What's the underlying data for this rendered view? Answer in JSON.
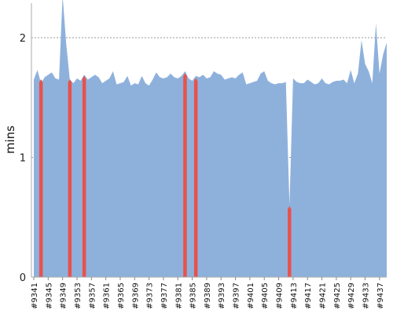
{
  "chart_data": {
    "type": "area",
    "ylabel": "mins",
    "ylim": [
      0,
      2.3
    ],
    "yticks": [
      0,
      1,
      2
    ],
    "grid": "horizontal dotted at y ticks",
    "x_start": 9341,
    "x_end": 9439,
    "x_tick_labels": [
      "#9341",
      "#9345",
      "#9349",
      "#9353",
      "#9357",
      "#9361",
      "#9365",
      "#9369",
      "#9373",
      "#9377",
      "#9381",
      "#9385",
      "#9389",
      "#9393",
      "#9397",
      "#9401",
      "#9405",
      "#9409",
      "#9413",
      "#9417",
      "#9421",
      "#9425",
      "#9429",
      "#9433",
      "#9437"
    ],
    "series": [
      {
        "style": "area",
        "color": "#8eb1dc",
        "x": [
          9341,
          9342,
          9343,
          9344,
          9345,
          9346,
          9347,
          9348,
          9349,
          9350,
          9351,
          9352,
          9353,
          9354,
          9355,
          9356,
          9357,
          9358,
          9359,
          9360,
          9361,
          9362,
          9363,
          9364,
          9365,
          9366,
          9367,
          9368,
          9369,
          9370,
          9371,
          9372,
          9373,
          9374,
          9375,
          9376,
          9377,
          9378,
          9379,
          9380,
          9381,
          9382,
          9383,
          9384,
          9385,
          9386,
          9387,
          9388,
          9389,
          9390,
          9391,
          9392,
          9393,
          9394,
          9395,
          9396,
          9397,
          9398,
          9399,
          9400,
          9401,
          9402,
          9403,
          9404,
          9405,
          9406,
          9407,
          9408,
          9409,
          9410,
          9411,
          9412,
          9413,
          9414,
          9415,
          9416,
          9417,
          9418,
          9419,
          9420,
          9421,
          9422,
          9423,
          9424,
          9425,
          9426,
          9427,
          9428,
          9429,
          9430,
          9431,
          9432,
          9433,
          9434,
          9435,
          9436,
          9437,
          9438,
          9439
        ],
        "values": [
          1.65,
          1.73,
          1.62,
          1.67,
          1.69,
          1.71,
          1.66,
          1.65,
          2.35,
          1.95,
          1.65,
          1.62,
          1.66,
          1.64,
          1.69,
          1.65,
          1.67,
          1.69,
          1.67,
          1.62,
          1.64,
          1.66,
          1.72,
          1.61,
          1.62,
          1.63,
          1.68,
          1.6,
          1.62,
          1.61,
          1.68,
          1.62,
          1.6,
          1.65,
          1.71,
          1.67,
          1.66,
          1.67,
          1.7,
          1.67,
          1.66,
          1.68,
          1.72,
          1.66,
          1.64,
          1.68,
          1.67,
          1.69,
          1.66,
          1.67,
          1.72,
          1.7,
          1.69,
          1.65,
          1.66,
          1.67,
          1.66,
          1.69,
          1.71,
          1.61,
          1.62,
          1.63,
          1.64,
          1.7,
          1.72,
          1.64,
          1.62,
          1.61,
          1.62,
          1.62,
          1.63,
          0.6,
          1.66,
          1.63,
          1.62,
          1.62,
          1.65,
          1.63,
          1.61,
          1.62,
          1.66,
          1.62,
          1.61,
          1.63,
          1.64,
          1.64,
          1.65,
          1.62,
          1.73,
          1.62,
          1.7,
          1.98,
          1.78,
          1.72,
          1.62,
          2.12,
          1.7,
          1.86,
          1.96
        ]
      },
      {
        "style": "bars",
        "color": "#e8524b",
        "x": [
          9343,
          9351,
          9355,
          9383,
          9386,
          9412
        ],
        "values": [
          1.64,
          1.64,
          1.67,
          1.69,
          1.65,
          0.58
        ]
      }
    ]
  }
}
